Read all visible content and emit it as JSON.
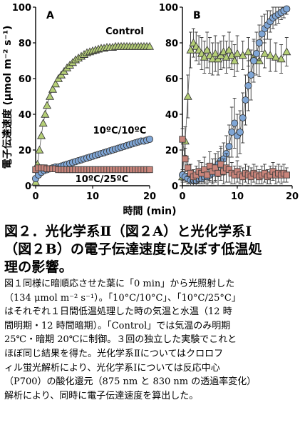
{
  "y_axis_label": "電子伝達速度 (μmol m⁻² s⁻¹)",
  "x_axis_label": "時間 (min)",
  "caption": {
    "title": "図２．光化学系Ⅱ（図２A）と光化学系Ⅰ\n（図２B）の電子伝達速度に及ぼす低温処\n理の影響。",
    "body": "図１同様に暗順応させた葉に「0 min」から光照射した\n（134 μmol m⁻² s⁻¹）。「10°C/10°C」、「10°C/25°C」\nはそれぞれ１日間低温処理した時の気温と水温（12 時\n間明期・12 時間暗期）。「Control」では気温のみ明期\n25℃・暗期 20℃に制御。３回の独立した実験でこれと\nほぼ同じ結果を得た。光化学系Ⅱについてはクロロフ\nィル蛍光解析により、光化学系Ⅰについては反応中心\n（P700）の酸化還元（875 nm と 830 nm の透過率変化）\n解析により、同時に電子伝達速度を算出した。"
  },
  "chart_data": [
    {
      "type": "scatter",
      "panel_label": "A",
      "xlim": [
        0,
        20
      ],
      "ylim": [
        0,
        100
      ],
      "x_ticks": [
        0,
        10,
        20
      ],
      "y_ticks": [
        0,
        20,
        40,
        60,
        80,
        100
      ],
      "grid": false,
      "series": [
        {
          "name": "Control",
          "marker": "triangle",
          "color": "#b5cf76",
          "x": [
            0,
            0.33,
            0.67,
            1,
            1.33,
            1.67,
            2,
            2.5,
            3,
            3.5,
            4,
            4.5,
            5,
            5.5,
            6,
            6.5,
            7,
            7.5,
            8,
            8.5,
            9,
            9.5,
            10,
            10.5,
            11,
            11.5,
            12,
            12.5,
            13,
            13.5,
            14,
            14.5,
            15,
            15.5,
            16,
            16.5,
            17,
            17.5,
            18,
            18.5,
            19,
            19.5,
            20
          ],
          "y": [
            2,
            12,
            20,
            28,
            35,
            40,
            45,
            50,
            54,
            57,
            60,
            62,
            64,
            66,
            67.5,
            69,
            70.5,
            71.5,
            72.5,
            73.5,
            74.5,
            75,
            75.5,
            76,
            76.5,
            77,
            77,
            77.5,
            77.5,
            77.5,
            78,
            78,
            78,
            78,
            78,
            78,
            78,
            78,
            78,
            78,
            78,
            78,
            78
          ]
        },
        {
          "name": "10ºC/10ºC",
          "marker": "circle",
          "color": "#7fa6d6",
          "x": [
            0,
            0.5,
            1,
            1.5,
            2,
            2.5,
            3,
            3.5,
            4,
            4.5,
            5,
            5.5,
            6,
            6.5,
            7,
            7.5,
            8,
            8.5,
            9,
            9.5,
            10,
            10.5,
            11,
            11.5,
            12,
            12.5,
            13,
            13.5,
            14,
            14.5,
            15,
            15.5,
            16,
            16.5,
            17,
            17.5,
            18,
            18.5,
            19,
            19.5,
            20
          ],
          "y": [
            4,
            6,
            7.5,
            8.5,
            9,
            9.5,
            10,
            10.5,
            10.5,
            11,
            11.5,
            12,
            12.5,
            13,
            13.5,
            14,
            14.5,
            15,
            15.5,
            16,
            16.5,
            17,
            17.5,
            18,
            18.5,
            19,
            19.5,
            20,
            20.5,
            21,
            21.5,
            22,
            22.5,
            23,
            23.5,
            24,
            24.5,
            25,
            25,
            25.5,
            26
          ]
        },
        {
          "name": "10ºC/25ºC",
          "marker": "square",
          "color": "#c9847a",
          "x": [
            0,
            0.5,
            1,
            1.5,
            2,
            2.5,
            3,
            3.5,
            4,
            4.5,
            5,
            5.5,
            6,
            6.5,
            7,
            7.5,
            8,
            8.5,
            9,
            9.5,
            10,
            10.5,
            11,
            11.5,
            12,
            12.5,
            13,
            13.5,
            14,
            14.5,
            15,
            15.5,
            16,
            16.5,
            17,
            17.5,
            18,
            18.5,
            19,
            19.5,
            20
          ],
          "y": [
            9,
            10,
            10,
            10,
            9.5,
            9.5,
            9.5,
            9.5,
            9,
            9,
            9,
            9,
            9,
            9,
            9,
            9,
            9,
            9,
            9,
            9,
            9,
            9,
            9,
            9,
            9,
            9,
            9,
            9,
            9,
            9,
            9,
            9,
            9,
            9,
            9,
            9,
            9,
            9,
            9,
            9,
            9
          ]
        }
      ]
    },
    {
      "type": "scatter",
      "panel_label": "B",
      "xlim": [
        0,
        20
      ],
      "ylim": [
        0,
        100
      ],
      "x_ticks": [
        0,
        10,
        20
      ],
      "y_ticks": [
        0,
        20,
        40,
        60,
        80,
        100
      ],
      "grid": false,
      "series": [
        {
          "name": "Control",
          "marker": "triangle",
          "color": "#b5cf76",
          "x": [
            0,
            0.5,
            1,
            1.5,
            2,
            2.5,
            3,
            3.5,
            4,
            4.5,
            5,
            5.5,
            6,
            6.5,
            7,
            7.5,
            8,
            8.5,
            9,
            9.5,
            10,
            11,
            12,
            13,
            14,
            15,
            16,
            17,
            18,
            19
          ],
          "y": [
            5,
            25,
            50,
            76,
            80,
            78,
            76,
            74,
            72,
            76,
            73,
            71,
            74,
            71,
            73,
            75,
            72,
            76,
            73,
            70,
            74,
            73,
            75,
            72,
            70,
            74,
            73,
            72,
            71,
            75
          ],
          "err": [
            3,
            8,
            12,
            10,
            8,
            8,
            8,
            9,
            9,
            10,
            10,
            9,
            10,
            9,
            8,
            9,
            9,
            10,
            8,
            9,
            10,
            8,
            8,
            9,
            9,
            8,
            9,
            8,
            8,
            8
          ]
        },
        {
          "name": "10ºC/10ºC",
          "marker": "circle",
          "color": "#7fa6d6",
          "x": [
            0,
            0.5,
            1,
            1.5,
            2,
            2.5,
            3,
            3.5,
            4,
            4.5,
            5,
            5.5,
            6,
            6.5,
            7,
            7.5,
            8,
            8.5,
            9,
            9.5,
            10,
            10.5,
            11,
            11.5,
            12,
            12.5,
            13,
            13.5,
            14,
            14.5,
            15,
            15.5,
            16,
            16.5,
            17,
            17.5,
            18,
            18.5,
            19
          ],
          "y": [
            6,
            5,
            4,
            3,
            3,
            3,
            4,
            4,
            5,
            5,
            6,
            7,
            9,
            12,
            14,
            15,
            18,
            22,
            30,
            35,
            28,
            30,
            38,
            48,
            56,
            62,
            70,
            74,
            80,
            85,
            88,
            90,
            92,
            94,
            95,
            96,
            97,
            98,
            99
          ],
          "err": [
            3,
            3,
            3,
            3,
            3,
            3,
            3,
            3,
            4,
            4,
            4,
            5,
            6,
            7,
            8,
            9,
            10,
            12,
            14,
            14,
            12,
            12,
            14,
            14,
            14,
            14,
            12,
            12,
            10,
            10,
            8,
            8,
            6,
            6,
            5,
            5,
            4,
            4,
            3
          ]
        },
        {
          "name": "10ºC/25ºC",
          "marker": "square",
          "color": "#c9847a",
          "x": [
            0,
            0.5,
            1,
            1.5,
            2,
            2.5,
            3,
            3.5,
            4,
            4.5,
            5,
            5.5,
            6,
            6.5,
            7,
            7.5,
            8,
            8.5,
            9,
            9.5,
            10,
            10.5,
            11,
            11.5,
            12,
            12.5,
            13,
            13.5,
            14,
            14.5,
            15,
            15.5,
            16,
            16.5,
            17,
            17.5,
            18,
            18.5,
            19
          ],
          "y": [
            26,
            15,
            10,
            7,
            5,
            6,
            8,
            7,
            9,
            6,
            11,
            8,
            10,
            7,
            12,
            8,
            10,
            9,
            7,
            6,
            8,
            6,
            5,
            7,
            6,
            5,
            7,
            6,
            5,
            6,
            7,
            5,
            6,
            8,
            6,
            7,
            6,
            7,
            6
          ],
          "err": [
            6,
            6,
            5,
            5,
            4,
            5,
            6,
            6,
            7,
            6,
            8,
            7,
            8,
            7,
            9,
            7,
            8,
            7,
            6,
            5,
            6,
            5,
            5,
            5,
            5,
            5,
            5,
            5,
            4,
            5,
            5,
            4,
            5,
            5,
            5,
            5,
            5,
            5,
            4
          ]
        }
      ]
    }
  ]
}
